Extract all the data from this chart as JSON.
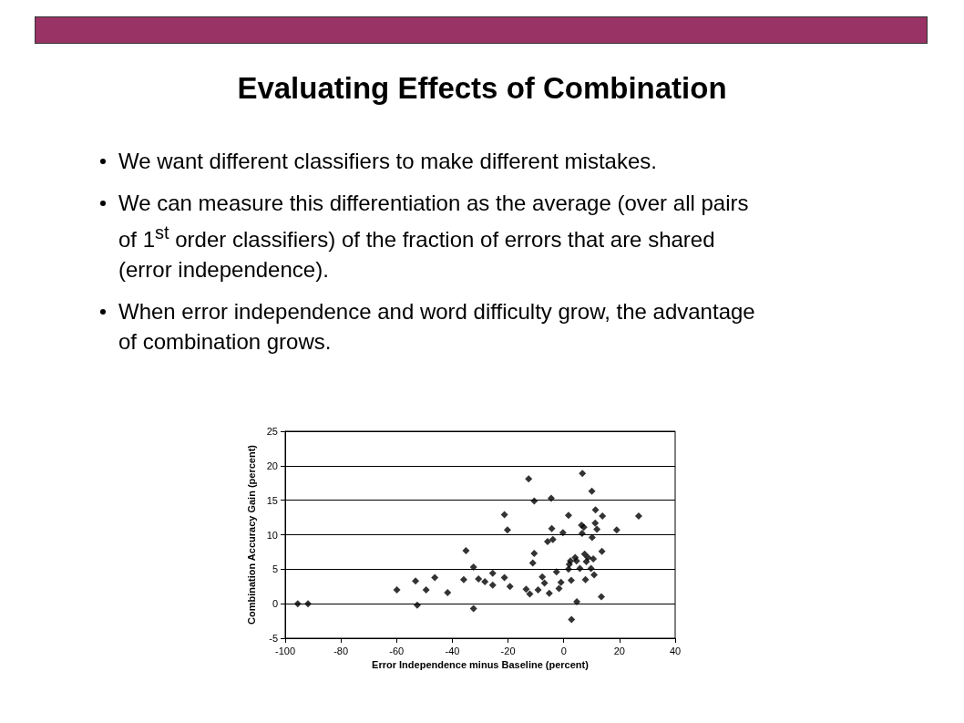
{
  "chart_data": {
    "type": "scatter",
    "title": "Evaluating Effects of Combination",
    "annotations": [
      "We want different classifiers to make different mistakes.",
      "We can measure this differentiation as the average (over all pairs of 1$^{st}$ order classifiers) of the fraction of errors that are shared (error independence).",
      "When error independence and word difficulty grow, the advantage of combination grows."
    ],
    "xlabel": "Error Independence minus Baseline (percent)",
    "ylabel": "Combination Accuracy Gain (percent)",
    "x": [
      -95.5,
      -91.8,
      -59.9,
      -53.2,
      -52.6,
      -49.4,
      -46.3,
      -41.7,
      -35.1,
      -35.9,
      -32.4,
      -32.4,
      -30.6,
      -28.3,
      -25.5,
      -25.5,
      -21.3,
      -21.3,
      -20.2,
      -19.3,
      -13.5,
      -12.2,
      -12.6,
      -11.1,
      -10.6,
      -10.6,
      -9.2,
      -7.7,
      -6.9,
      -5.2,
      -5.8,
      -4.5,
      -4.3,
      -3.9,
      -2.6,
      -1.7,
      -1.0,
      -0.3,
      1.7,
      1.7,
      2.0,
      2.4,
      2.7,
      2.8,
      4.1,
      4.6,
      4.7,
      5.8,
      6.4,
      6.6,
      6.7,
      7.2,
      7.5,
      7.8,
      8.1,
      8.7,
      9.8,
      10.2,
      10.1,
      10.6,
      10.9,
      11.3,
      11.4,
      11.9,
      13.5,
      13.7,
      13.9,
      19.0,
      26.9
    ],
    "values": [
      0,
      0,
      2.0,
      3.3,
      -0.2,
      2.0,
      3.8,
      1.6,
      7.7,
      3.5,
      5.3,
      -0.7,
      3.6,
      3.2,
      4.4,
      2.7,
      3.8,
      12.9,
      10.7,
      2.5,
      2.1,
      1.4,
      18.1,
      5.9,
      7.3,
      14.9,
      2.0,
      3.9,
      3.0,
      1.5,
      9.0,
      15.3,
      10.9,
      9.3,
      4.6,
      2.2,
      3.1,
      10.3,
      12.8,
      5.0,
      5.7,
      6.2,
      3.4,
      -2.3,
      6.7,
      6.2,
      0.3,
      5.1,
      11.4,
      10.2,
      18.9,
      11.1,
      7.2,
      3.5,
      6.1,
      6.7,
      5.1,
      9.6,
      16.3,
      6.5,
      4.2,
      11.7,
      13.6,
      10.8,
      1.0,
      7.6,
      12.7,
      10.7,
      12.7
    ],
    "color": "#000000",
    "marker": "diamond",
    "grid": "y",
    "xlim": [
      -100,
      40
    ],
    "xticks": [
      -100,
      -80,
      -60,
      -40,
      -20,
      0,
      20,
      40
    ],
    "ylim": [
      -5,
      25
    ],
    "yticks": [
      -5,
      0,
      5,
      10,
      15,
      20,
      25
    ]
  }
}
